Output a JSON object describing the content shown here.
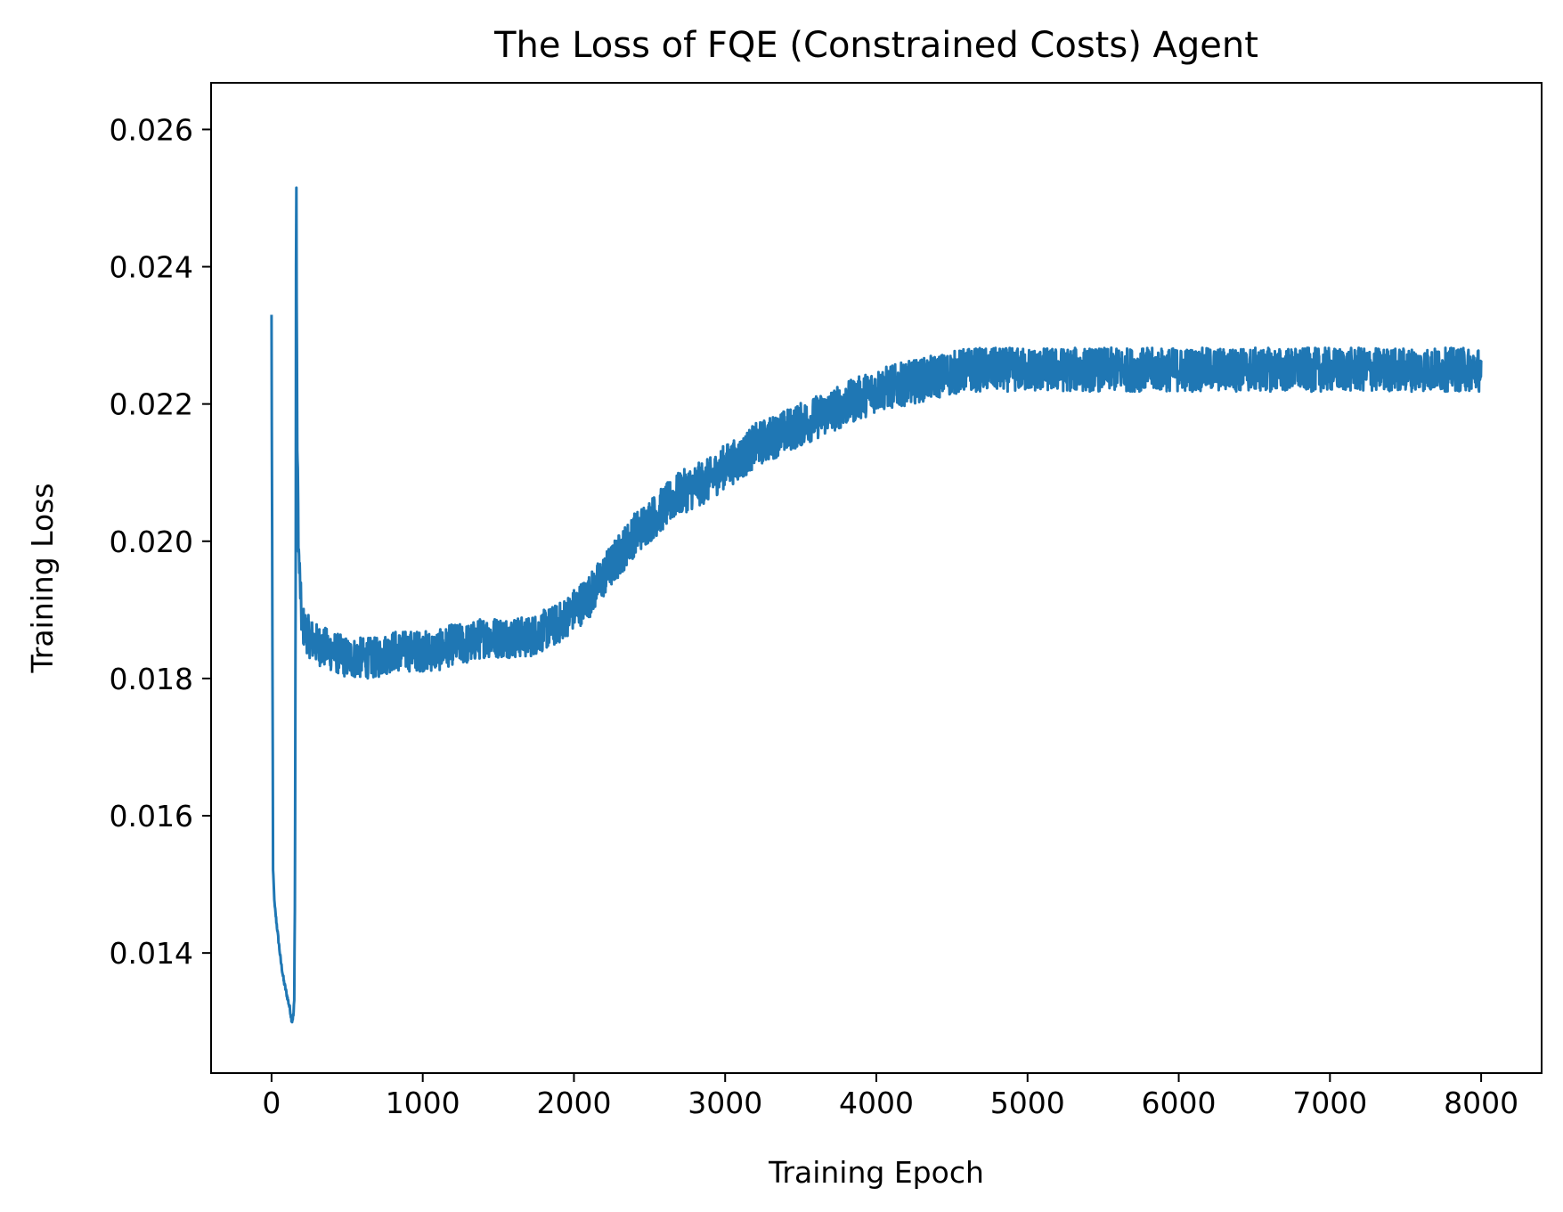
{
  "chart_data": {
    "type": "line",
    "title": "The Loss of FQE (Constrained Costs) Agent",
    "xlabel": "Training Epoch",
    "ylabel": "Training Loss",
    "xlim": [
      -400,
      8400
    ],
    "ylim": [
      0.01225,
      0.02668
    ],
    "xticks": [
      0,
      1000,
      2000,
      3000,
      4000,
      5000,
      6000,
      7000,
      8000
    ],
    "xtick_labels": [
      "0",
      "1000",
      "2000",
      "3000",
      "4000",
      "5000",
      "6000",
      "7000",
      "8000"
    ],
    "yticks": [
      0.014,
      0.016,
      0.018,
      0.02,
      0.022,
      0.024,
      0.026
    ],
    "ytick_labels": [
      "0.014",
      "0.016",
      "0.018",
      "0.020",
      "0.022",
      "0.024",
      "0.026"
    ],
    "grid": false,
    "series": [
      {
        "color": "#1f77b4",
        "x": [
          0,
          10,
          20,
          40,
          60,
          80,
          100,
          120,
          135,
          145,
          150,
          155,
          160,
          163,
          166,
          170,
          180,
          200,
          250,
          300,
          400,
          500,
          600,
          700,
          800,
          900,
          1000,
          1100,
          1200,
          1300,
          1400,
          1500,
          1600,
          1700,
          1800,
          1900,
          2000,
          2100,
          2200,
          2300,
          2400,
          2500,
          2600,
          2700,
          2800,
          2900,
          3000,
          3100,
          3200,
          3300,
          3400,
          3500,
          3600,
          3700,
          3800,
          3900,
          4000,
          4200,
          4400,
          4600,
          4800,
          5000,
          5500,
          6000,
          6500,
          7000,
          7500,
          8000
        ],
        "y": [
          0.0233,
          0.0152,
          0.0147,
          0.0143,
          0.0139,
          0.0136,
          0.0134,
          0.0132,
          0.013,
          0.0131,
          0.0133,
          0.015,
          0.02,
          0.026,
          0.0235,
          0.0215,
          0.0198,
          0.0188,
          0.0186,
          0.0185,
          0.0184,
          0.0183,
          0.0183,
          0.0183,
          0.0184,
          0.0184,
          0.0184,
          0.0184,
          0.0185,
          0.0185,
          0.0186,
          0.0186,
          0.0186,
          0.0186,
          0.0187,
          0.0188,
          0.019,
          0.0192,
          0.0195,
          0.0198,
          0.0201,
          0.0203,
          0.0205,
          0.0207,
          0.0208,
          0.0209,
          0.0211,
          0.0212,
          0.0214,
          0.0215,
          0.0216,
          0.0217,
          0.0218,
          0.0219,
          0.022,
          0.0221,
          0.0222,
          0.0223,
          0.0224,
          0.0225,
          0.0225,
          0.0225,
          0.0225,
          0.0225,
          0.0225,
          0.0225,
          0.0225,
          0.0225
        ]
      }
    ]
  }
}
